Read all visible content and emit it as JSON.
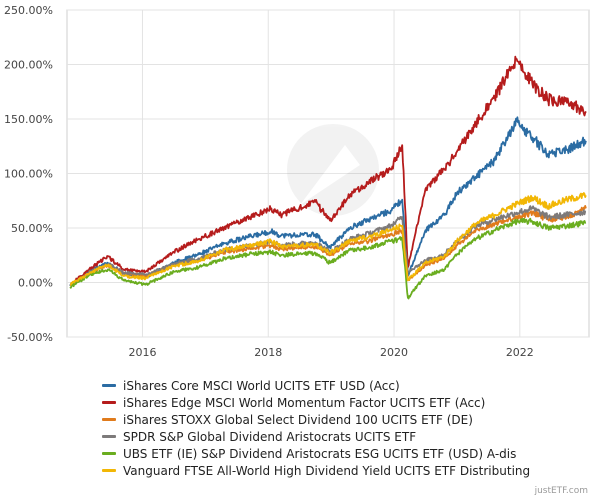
{
  "chart_data": {
    "type": "line",
    "title": "",
    "xlabel": "",
    "ylabel": "",
    "ylim": [
      -50,
      250
    ],
    "y_ticks": [
      "250.00%",
      "200.00%",
      "150.00%",
      "100.00%",
      "50.00%",
      "0.00%",
      "-50.00%"
    ],
    "y_tick_values": [
      250,
      200,
      150,
      100,
      50,
      0,
      -50
    ],
    "xlim": [
      2014.8,
      2023.1
    ],
    "x_ticks": [
      "2016",
      "2018",
      "2020",
      "2022"
    ],
    "x_tick_values": [
      2016,
      2018,
      2020,
      2022
    ],
    "series": [
      {
        "name": "iShares Core MSCI World UCITS ETF USD (Acc)",
        "color": "#2b6ca3",
        "x": [
          2014.85,
          2015.2,
          2015.45,
          2015.7,
          2016.05,
          2016.5,
          2016.9,
          2017.3,
          2017.7,
          2018.05,
          2018.2,
          2018.75,
          2018.98,
          2019.3,
          2019.6,
          2019.95,
          2020.13,
          2020.22,
          2020.5,
          2020.8,
          2021.0,
          2021.3,
          2021.6,
          2021.95,
          2022.2,
          2022.45,
          2022.75,
          2023.05
        ],
        "values": [
          -3,
          12,
          18,
          8,
          5,
          18,
          26,
          36,
          42,
          47,
          43,
          44,
          32,
          50,
          58,
          66,
          76,
          6,
          48,
          62,
          82,
          97,
          112,
          148,
          133,
          118,
          122,
          130
        ]
      },
      {
        "name": "iShares Edge MSCI World Momentum Factor UCITS ETF (Acc)",
        "color": "#b51c1c",
        "x": [
          2014.85,
          2015.2,
          2015.45,
          2015.7,
          2016.05,
          2016.5,
          2016.9,
          2017.3,
          2017.7,
          2018.05,
          2018.2,
          2018.75,
          2018.98,
          2019.3,
          2019.6,
          2019.95,
          2020.13,
          2020.22,
          2020.5,
          2020.8,
          2021.0,
          2021.3,
          2021.6,
          2021.95,
          2022.2,
          2022.45,
          2022.75,
          2023.05
        ],
        "values": [
          -2,
          14,
          24,
          12,
          10,
          28,
          40,
          50,
          60,
          68,
          62,
          74,
          57,
          80,
          92,
          104,
          126,
          14,
          86,
          104,
          120,
          146,
          170,
          205,
          182,
          168,
          165,
          157
        ]
      },
      {
        "name": "iShares STOXX Global Select Dividend 100 UCITS ETF (DE)",
        "color": "#e07b1c",
        "x": [
          2014.85,
          2015.2,
          2015.45,
          2015.7,
          2016.05,
          2016.5,
          2016.9,
          2017.3,
          2017.7,
          2018.05,
          2018.2,
          2018.75,
          2018.98,
          2019.3,
          2019.6,
          2019.95,
          2020.13,
          2020.22,
          2020.5,
          2020.8,
          2021.0,
          2021.3,
          2021.6,
          2021.95,
          2022.2,
          2022.45,
          2022.75,
          2023.05
        ],
        "values": [
          -3,
          10,
          16,
          8,
          6,
          16,
          20,
          28,
          31,
          34,
          31,
          33,
          25,
          36,
          38,
          44,
          48,
          2,
          16,
          22,
          34,
          48,
          54,
          60,
          64,
          58,
          60,
          68
        ]
      },
      {
        "name": "SPDR S&P Global Dividend Aristocrats UCITS ETF",
        "color": "#7d7a7a",
        "x": [
          2014.85,
          2015.2,
          2015.45,
          2015.7,
          2016.05,
          2016.5,
          2016.9,
          2017.3,
          2017.7,
          2018.05,
          2018.2,
          2018.75,
          2018.98,
          2019.3,
          2019.6,
          2019.95,
          2020.13,
          2020.22,
          2020.5,
          2020.8,
          2021.0,
          2021.3,
          2021.6,
          2021.95,
          2022.2,
          2022.45,
          2022.75,
          2023.05
        ],
        "values": [
          -3,
          11,
          17,
          9,
          7,
          17,
          22,
          30,
          34,
          38,
          34,
          37,
          28,
          40,
          45,
          52,
          60,
          10,
          20,
          26,
          38,
          52,
          58,
          64,
          68,
          60,
          62,
          65
        ]
      },
      {
        "name": "UBS ETF (IE) S&P Dividend Aristocrats ESG UCITS ETF (USD) A-dis",
        "color": "#6aad1f",
        "x": [
          2014.85,
          2015.2,
          2015.45,
          2015.7,
          2016.05,
          2016.5,
          2016.9,
          2017.3,
          2017.7,
          2018.05,
          2018.2,
          2018.75,
          2018.98,
          2019.3,
          2019.6,
          2019.95,
          2020.13,
          2020.22,
          2020.5,
          2020.8,
          2021.0,
          2021.3,
          2021.6,
          2021.95,
          2022.2,
          2022.45,
          2022.75,
          2023.05
        ],
        "values": [
          -4,
          8,
          12,
          2,
          -2,
          10,
          14,
          22,
          26,
          28,
          25,
          27,
          18,
          30,
          32,
          38,
          40,
          -14,
          6,
          12,
          26,
          40,
          48,
          56,
          56,
          50,
          52,
          55
        ]
      },
      {
        "name": "Vanguard FTSE All-World High Dividend Yield UCITS ETF Distributing",
        "color": "#f2b705",
        "x": [
          2014.85,
          2015.2,
          2015.45,
          2015.7,
          2016.05,
          2016.5,
          2016.9,
          2017.3,
          2017.7,
          2018.05,
          2018.2,
          2018.75,
          2018.98,
          2019.3,
          2019.6,
          2019.95,
          2020.13,
          2020.22,
          2020.5,
          2020.8,
          2021.0,
          2021.3,
          2021.6,
          2021.95,
          2022.2,
          2022.45,
          2022.75,
          2023.05
        ],
        "values": [
          -2,
          10,
          16,
          6,
          4,
          15,
          20,
          30,
          34,
          38,
          33,
          35,
          27,
          38,
          42,
          48,
          52,
          2,
          18,
          24,
          38,
          54,
          62,
          72,
          78,
          70,
          76,
          80
        ]
      }
    ]
  },
  "credit": "justETF.com"
}
